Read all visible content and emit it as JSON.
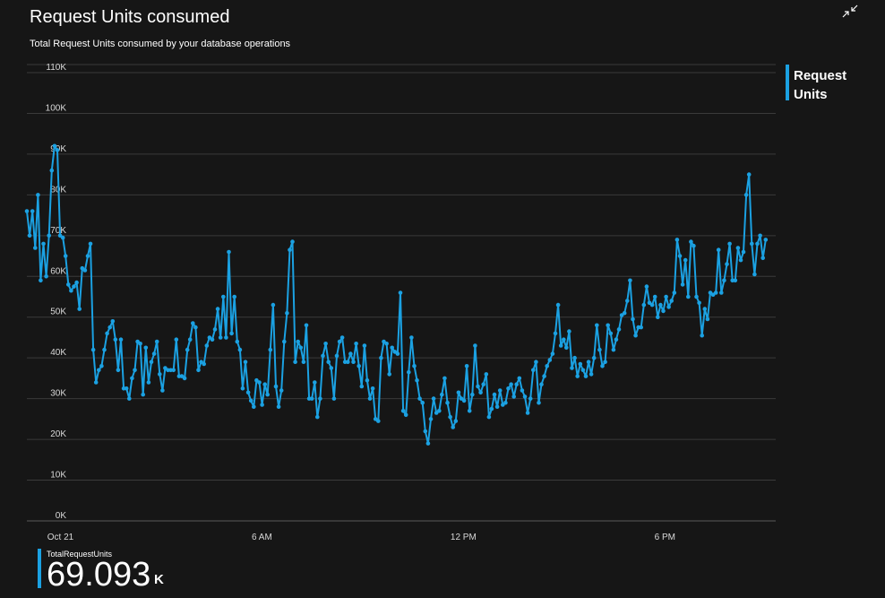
{
  "header": {
    "title": "Request Units consumed",
    "subtitle": "Total Request Units consumed by your database operations",
    "collapse_icon": "collapse-arrows-icon"
  },
  "legend": {
    "label": "Request Units",
    "color": "#1ba1e2"
  },
  "summary": {
    "label": "TotalRequestUnits",
    "value": "69.093",
    "unit": "K",
    "color": "#1ba1e2"
  },
  "chart_data": {
    "type": "line",
    "title": "Request Units consumed",
    "subtitle": "Total Request Units consumed by your database operations",
    "xlabel": "",
    "ylabel": "",
    "ylim": [
      0,
      110000
    ],
    "xlim": [
      -1.0,
      21.3
    ],
    "yticks": [
      0,
      10000,
      20000,
      30000,
      40000,
      50000,
      60000,
      70000,
      80000,
      90000,
      100000,
      110000
    ],
    "ytick_labels": [
      "0K",
      "10K",
      "20K",
      "30K",
      "40K",
      "50K",
      "60K",
      "70K",
      "80K",
      "90K",
      "100K",
      "110K"
    ],
    "xticks": [
      0,
      6,
      12,
      18
    ],
    "xtick_labels": [
      "Oct 21",
      "6 AM",
      "12 PM",
      "6 PM"
    ],
    "x_unit": "hours after Oct 21 00:00",
    "grid": true,
    "legend_position": "right",
    "series": [
      {
        "name": "Request Units",
        "color": "#1ba1e2",
        "values": [
          76000,
          70000,
          76000,
          67000,
          80000,
          59000,
          68000,
          60000,
          70000,
          86000,
          92000,
          91000,
          70000,
          69500,
          65000,
          58000,
          56500,
          57500,
          58500,
          52000,
          62000,
          61500,
          65000,
          68000,
          42000,
          34000,
          37000,
          38000,
          42000,
          46000,
          47500,
          49000,
          44500,
          37000,
          44500,
          32500,
          32500,
          30000,
          35000,
          37000,
          44000,
          43500,
          31000,
          42500,
          34000,
          39000,
          41000,
          44000,
          36000,
          32000,
          37500,
          37000,
          37000,
          37000,
          44500,
          35500,
          35500,
          35000,
          42000,
          44500,
          48500,
          47500,
          37000,
          39000,
          38500,
          43000,
          45000,
          44500,
          47000,
          52000,
          45000,
          55000,
          45000,
          66000,
          46000,
          55000,
          44000,
          42000,
          32500,
          39000,
          31500,
          29500,
          28000,
          34500,
          34000,
          28500,
          33500,
          31000,
          42000,
          53000,
          33000,
          28000,
          32000,
          44000,
          51000,
          66500,
          68500,
          39000,
          44000,
          42500,
          39000,
          48000,
          30000,
          30000,
          34000,
          25500,
          30000,
          40500,
          43500,
          39000,
          37500,
          30000,
          40500,
          44000,
          45000,
          39000,
          39000,
          41000,
          39000,
          43500,
          38000,
          33000,
          43000,
          34500,
          30000,
          32500,
          25000,
          24500,
          40000,
          44000,
          43500,
          36000,
          42500,
          41500,
          41000,
          56000,
          27000,
          26000,
          36500,
          45000,
          38000,
          34500,
          30000,
          29000,
          22000,
          19000,
          25000,
          30000,
          26500,
          27000,
          31000,
          35000,
          29000,
          25500,
          23000,
          24500,
          31500,
          30000,
          29500,
          38000,
          27000,
          31000,
          43000,
          33000,
          31500,
          33500,
          36000,
          25500,
          27500,
          31000,
          28000,
          32000,
          28500,
          29000,
          32500,
          33500,
          30500,
          33500,
          35000,
          32000,
          30500,
          26500,
          30000,
          37000,
          39000,
          29000,
          33500,
          35500,
          38000,
          39500,
          41000,
          46000,
          53000,
          43000,
          44500,
          42500,
          46500,
          37500,
          40000,
          35500,
          38500,
          37000,
          35500,
          39000,
          36000,
          40000,
          48000,
          42000,
          38000,
          39000,
          48000,
          46000,
          42000,
          44500,
          47000,
          50500,
          51000,
          54000,
          59000,
          49500,
          45500,
          47500,
          47500,
          53000,
          57500,
          53500,
          53000,
          55000,
          50000,
          53000,
          51500,
          55000,
          52500,
          54000,
          56000,
          69000,
          65000,
          58000,
          64000,
          55000,
          68500,
          67500,
          55000,
          53500,
          45500,
          52000,
          49500,
          56000,
          55500,
          56000,
          66500,
          56000,
          59000,
          63000,
          68000,
          59000,
          59000,
          67000,
          64000,
          66000,
          80000,
          85000,
          68000,
          60500,
          68000,
          70000,
          64500,
          69000
        ]
      }
    ]
  }
}
